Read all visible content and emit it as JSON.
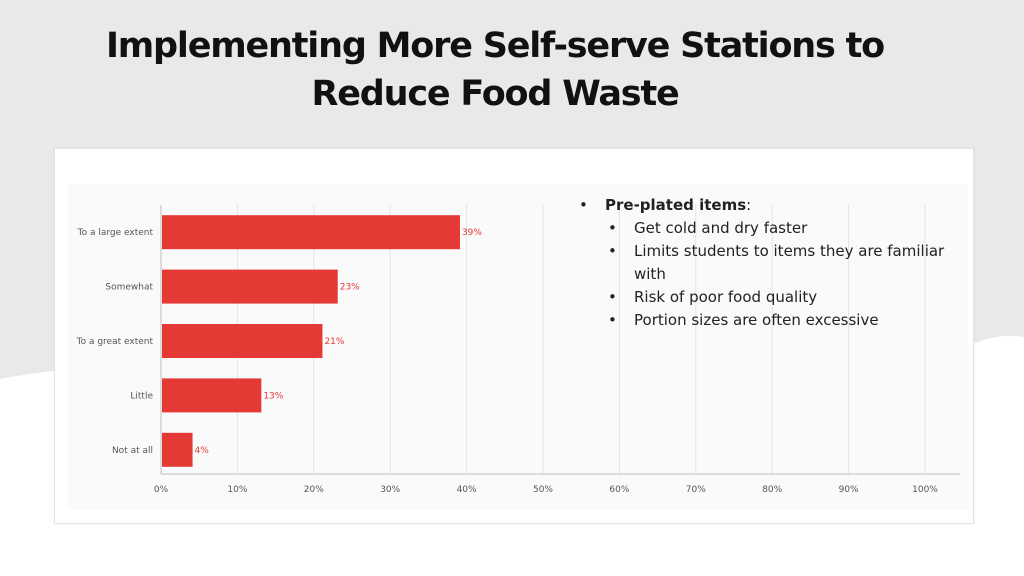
{
  "slide": {
    "title": "Implementing More Self-serve Stations to Reduce Food Waste",
    "background_color": "#ebe9e7",
    "accent_color": "#e53935"
  },
  "notes": {
    "heading": "Pre-plated items",
    "heading_suffix": ":",
    "bullets": [
      "Get cold and dry faster",
      "Limits students to items they are familiar with",
      "Risk of poor food quality",
      "Portion sizes are often excessive"
    ]
  },
  "chart_data": {
    "type": "bar",
    "orientation": "horizontal",
    "categories": [
      "To a large extent",
      "Somewhat",
      "To a great extent",
      "Little",
      "Not at all"
    ],
    "values": [
      39,
      23,
      21,
      13,
      4
    ],
    "data_labels": [
      "39%",
      "23%",
      "21%",
      "13%",
      "4%"
    ],
    "x_ticks": [
      "0%",
      "10%",
      "20%",
      "30%",
      "40%",
      "50%",
      "60%",
      "70%",
      "80%",
      "90%",
      "100%"
    ],
    "xlim": [
      0,
      100
    ],
    "bar_color": "#e53935",
    "grid": true,
    "title": "",
    "xlabel": "",
    "ylabel": ""
  }
}
